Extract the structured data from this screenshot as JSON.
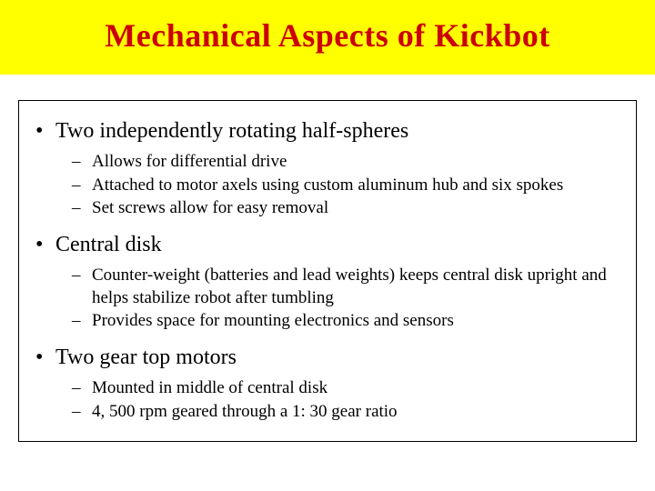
{
  "title": "Mechanical Aspects of Kickbot",
  "colors": {
    "title_bg": "#ffff00",
    "title_text": "#cc0000",
    "body_bg": "#ffffff",
    "body_text": "#000000",
    "border": "#000000"
  },
  "typography": {
    "title_fontsize": 36,
    "main_bullet_fontsize": 24,
    "sub_bullet_fontsize": 19,
    "font_family": "Times New Roman"
  },
  "bullets": [
    {
      "text": "Two independently rotating half-spheres",
      "subs": [
        "Allows for differential drive",
        "Attached to motor axels using custom aluminum hub and six spokes",
        "Set screws allow for easy removal"
      ]
    },
    {
      "text": "Central disk",
      "subs": [
        "Counter-weight (batteries and lead weights) keeps central disk upright and helps stabilize robot after tumbling",
        "Provides space for mounting electronics and sensors"
      ]
    },
    {
      "text": "Two gear top motors",
      "subs": [
        "Mounted in middle of central disk",
        "4, 500 rpm geared through a 1: 30 gear ratio"
      ]
    }
  ]
}
